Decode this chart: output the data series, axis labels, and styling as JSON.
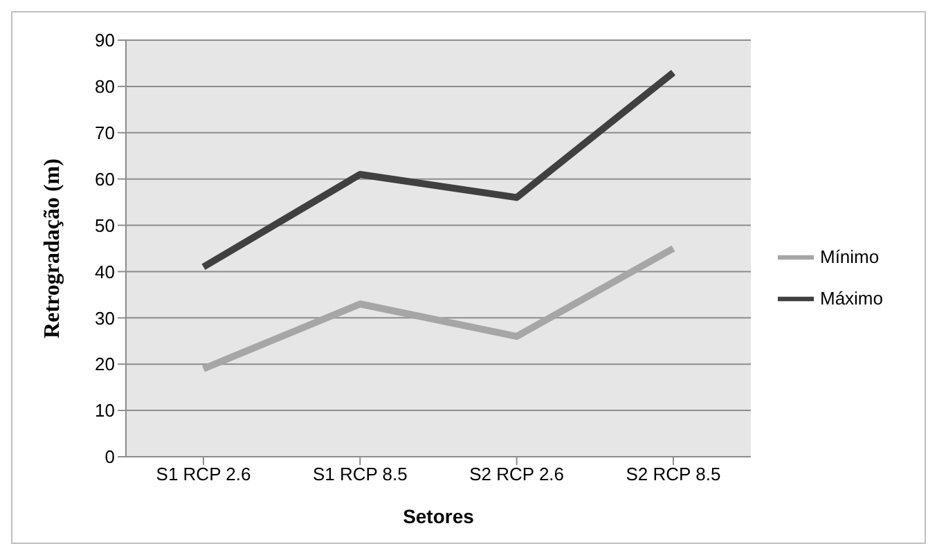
{
  "chart_data": {
    "type": "line",
    "xlabel": "Setores",
    "ylabel": "Retrogradação (m)",
    "categories": [
      "S1 RCP 2.6",
      "S1 RCP 8.5",
      "S2 RCP 2.6",
      "S2 RCP 8.5"
    ],
    "series": [
      {
        "name": "Mínimo",
        "color": "#a6a6a6",
        "values": [
          19,
          33,
          26,
          45
        ]
      },
      {
        "name": "Máximo",
        "color": "#404040",
        "values": [
          41,
          61,
          56,
          83
        ]
      }
    ],
    "ylim": [
      0,
      90
    ],
    "yticks": [
      0,
      10,
      20,
      30,
      40,
      50,
      60,
      70,
      80,
      90
    ],
    "grid": "y",
    "legend": "right",
    "marker": "none",
    "line_style": "solid"
  }
}
